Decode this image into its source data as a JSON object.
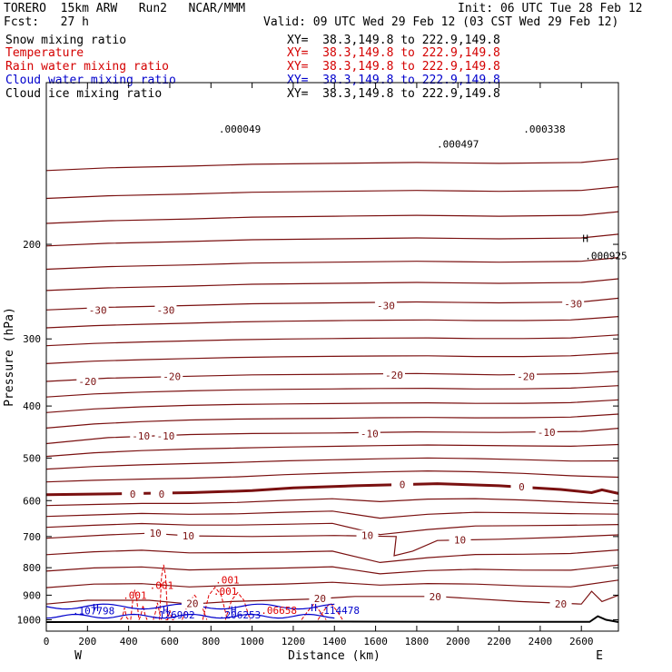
{
  "header": {
    "model": "TORERO  15km ARW   Run2   NCAR/MMM",
    "init": "Init: 06 UTC Tue 28 Feb 12",
    "fcst": "Fcst:   27 h",
    "valid": "Valid: 09 UTC Wed 29 Feb 12 (03 CST Wed 29 Feb 12)"
  },
  "fields": [
    {
      "name": "Snow mixing ratio",
      "xy": "XY=  38.3,149.8 to 222.9,149.8",
      "color": "#000000"
    },
    {
      "name": "Temperature",
      "xy": "XY=  38.3,149.8 to 222.9,149.8",
      "color": "#d40000"
    },
    {
      "name": "Rain water mixing ratio",
      "xy": "XY=  38.3,149.8 to 222.9,149.8",
      "color": "#d40000"
    },
    {
      "name": "Cloud water mixing ratio",
      "xy": "XY=  38.3,149.8 to 222.9,149.8",
      "color": "#0000cc"
    },
    {
      "name": "Cloud ice mixing ratio",
      "xy": "XY=  38.3,149.8 to 222.9,149.8",
      "color": "#000000"
    }
  ],
  "colors": {
    "temperature": "#7a1010",
    "rain": "#e00000",
    "cloud_water": "#0000cc",
    "ground": "#000000"
  },
  "chart_data": {
    "type": "line",
    "xlabel": "Distance (km)",
    "ylabel": "Pressure (hPa)",
    "xlim": [
      0,
      2780
    ],
    "ylim": [
      1050,
      100
    ],
    "log_scale_y": true,
    "x_ticks": [
      0,
      200,
      400,
      600,
      800,
      1000,
      1200,
      1400,
      1600,
      1800,
      2000,
      2200,
      2400,
      2600
    ],
    "y_ticks": [
      200,
      300,
      400,
      500,
      600,
      700,
      800,
      900,
      1000
    ],
    "x_end_labels": {
      "left": "W",
      "right": "E"
    },
    "isotherms": [
      {
        "value": -30,
        "labels": [
          {
            "text": "-30",
            "x": 250,
            "p": 265
          },
          {
            "text": "-30",
            "x": 580,
            "p": 265
          },
          {
            "text": "-30",
            "x": 1650,
            "p": 260
          },
          {
            "text": "-30",
            "x": 2560,
            "p": 258
          }
        ],
        "points": [
          [
            0,
            265
          ],
          [
            300,
            262
          ],
          [
            700,
            260
          ],
          [
            1000,
            258
          ],
          [
            1400,
            257
          ],
          [
            1800,
            256
          ],
          [
            2200,
            257
          ],
          [
            2600,
            256
          ],
          [
            2780,
            252
          ]
        ]
      },
      {
        "value": -20,
        "labels": [
          {
            "text": "-20",
            "x": 200,
            "p": 360
          },
          {
            "text": "-20",
            "x": 610,
            "p": 352
          },
          {
            "text": "-20",
            "x": 1690,
            "p": 350
          },
          {
            "text": "-20",
            "x": 2330,
            "p": 352
          }
        ],
        "points": [
          [
            0,
            360
          ],
          [
            300,
            355
          ],
          [
            700,
            352
          ],
          [
            1000,
            350
          ],
          [
            1400,
            349
          ],
          [
            1800,
            348
          ],
          [
            2200,
            350
          ],
          [
            2600,
            348
          ],
          [
            2780,
            345
          ]
        ]
      },
      {
        "value": -10,
        "labels": [
          {
            "text": "-10",
            "x": 460,
            "p": 455
          },
          {
            "text": "-10",
            "x": 580,
            "p": 455
          },
          {
            "text": "-10",
            "x": 1570,
            "p": 450
          },
          {
            "text": "-10",
            "x": 2430,
            "p": 448
          }
        ],
        "points": [
          [
            0,
            470
          ],
          [
            300,
            458
          ],
          [
            700,
            452
          ],
          [
            1000,
            450
          ],
          [
            1400,
            449
          ],
          [
            1800,
            447
          ],
          [
            2200,
            448
          ],
          [
            2600,
            446
          ],
          [
            2780,
            440
          ]
        ]
      },
      {
        "value": 0,
        "labels": [
          {
            "text": "0",
            "x": 420,
            "p": 583
          },
          {
            "text": "0",
            "x": 560,
            "p": 583
          },
          {
            "text": "0",
            "x": 1730,
            "p": 560
          },
          {
            "text": "0",
            "x": 2310,
            "p": 565
          }
        ],
        "points": [
          [
            0,
            585
          ],
          [
            300,
            583
          ],
          [
            700,
            580
          ],
          [
            1000,
            575
          ],
          [
            1200,
            568
          ],
          [
            1500,
            563
          ],
          [
            1900,
            558
          ],
          [
            2200,
            563
          ],
          [
            2500,
            572
          ],
          [
            2650,
            580
          ],
          [
            2700,
            573
          ],
          [
            2780,
            582
          ]
        ]
      },
      {
        "value": 10,
        "labels": [
          {
            "text": "10",
            "x": 530,
            "p": 690
          },
          {
            "text": "10",
            "x": 690,
            "p": 698
          },
          {
            "text": "10",
            "x": 1560,
            "p": 697
          },
          {
            "text": "10",
            "x": 2010,
            "p": 710
          }
        ],
        "points": [
          [
            0,
            705
          ],
          [
            300,
            695
          ],
          [
            500,
            690
          ],
          [
            700,
            698
          ],
          [
            1000,
            700
          ],
          [
            1400,
            697
          ],
          [
            1700,
            700
          ],
          [
            1690,
            760
          ],
          [
            1780,
            745
          ],
          [
            1900,
            712
          ],
          [
            2200,
            708
          ],
          [
            2500,
            702
          ],
          [
            2780,
            695
          ]
        ]
      },
      {
        "value": 20,
        "labels": [
          {
            "text": "20",
            "x": 710,
            "p": 932
          },
          {
            "text": "20",
            "x": 1330,
            "p": 912
          },
          {
            "text": "20",
            "x": 1890,
            "p": 905
          },
          {
            "text": "20",
            "x": 2500,
            "p": 935
          }
        ],
        "points": [
          [
            0,
            935
          ],
          [
            200,
            920
          ],
          [
            500,
            920
          ],
          [
            700,
            935
          ],
          [
            900,
            925
          ],
          [
            1300,
            915
          ],
          [
            1500,
            905
          ],
          [
            1900,
            905
          ],
          [
            2300,
            925
          ],
          [
            2600,
            935
          ],
          [
            2650,
            885
          ],
          [
            2700,
            925
          ],
          [
            2780,
            900
          ]
        ]
      }
    ],
    "rain_labels": [
      {
        "text": ".001",
        "x": 430,
        "p": 900
      },
      {
        "text": ".001",
        "x": 560,
        "p": 862
      },
      {
        "text": ".001",
        "x": 880,
        "p": 842
      },
      {
        "text": ".001",
        "x": 870,
        "p": 885
      },
      {
        "text": ".06658",
        "x": 1130,
        "p": 960
      }
    ],
    "cloud_water_labels": [
      {
        "text": ".107798",
        "x": 230,
        "p": 962
      },
      {
        "text": ".126902",
        "x": 620,
        "p": 978
      },
      {
        "text": ".206253",
        "x": 940,
        "p": 978
      },
      {
        "text": ".114478",
        "x": 1420,
        "p": 960
      }
    ],
    "extrema_labels": [
      {
        "text": "H",
        "x": 240,
        "p": 948
      },
      {
        "text": "H",
        "x": 580,
        "p": 960
      },
      {
        "text": "H",
        "x": 910,
        "p": 958
      },
      {
        "text": "H",
        "x": 1300,
        "p": 948
      },
      {
        "text": "H",
        "x": 2620,
        "p": 195
      }
    ],
    "snow_labels": [
      {
        "text": ".000049",
        "x": 940,
        "p": 122
      },
      {
        "text": ".000497",
        "x": 2000,
        "p": 130
      },
      {
        "text": ".000338",
        "x": 2420,
        "p": 122
      },
      {
        "text": ".000925",
        "x": 2720,
        "p": 210
      }
    ],
    "ground": [
      [
        0,
        1010
      ],
      [
        1000,
        1009
      ],
      [
        1400,
        1008
      ],
      [
        2000,
        1009
      ],
      [
        2600,
        1009
      ],
      [
        2640,
        1009
      ],
      [
        2680,
        985
      ],
      [
        2720,
        1000
      ],
      [
        2780,
        1010
      ]
    ]
  }
}
